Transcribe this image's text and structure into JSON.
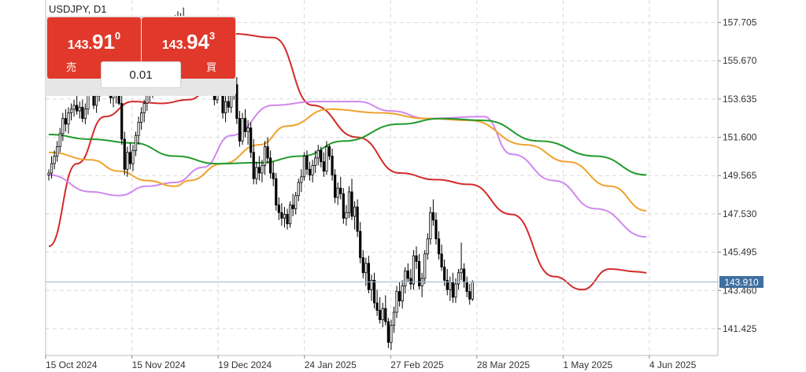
{
  "symbol_title": "USDJPY, D1",
  "trade_panel": {
    "sell": {
      "price_prefix": "143.",
      "price_main": "91",
      "price_sup": "0",
      "label": "売"
    },
    "buy": {
      "price_prefix": "143.",
      "price_main": "94",
      "price_sup": "3",
      "label": "買"
    },
    "lot_size": "0.01"
  },
  "colors": {
    "up_candle": "#ffffff",
    "down_candle": "#000000",
    "candle_outline": "#000000",
    "ma_red": "#d42a2a",
    "ma_violet": "#cf88ee",
    "ma_orange": "#f0a22e",
    "ma_green": "#229a2c",
    "current_price_line": "#9fb4c8",
    "current_price_badge": "#3f6fa0",
    "grid": "#d9d9d9",
    "sell_buy_button": "#e0392b"
  },
  "chart_data": {
    "type": "candlestick",
    "symbol": "USDJPY",
    "timeframe": "D1",
    "ylim": [
      140.0,
      158.9
    ],
    "y_ticks": [
      157.705,
      155.67,
      153.635,
      151.6,
      149.565,
      147.53,
      145.495,
      143.46,
      141.425
    ],
    "y_tick_labels": [
      "157.705",
      "155.670",
      "153.635",
      "151.600",
      "149.565",
      "147.530",
      "145.495",
      "143.460",
      "141.425"
    ],
    "x_tick_labels": [
      "15 Oct 2024",
      "15 Nov 2024",
      "19 Dec 2024",
      "24 Jan 2025",
      "27 Feb 2025",
      "28 Mar 2025",
      "1 May 2025",
      "4 Jun 2025"
    ],
    "current_price": 143.91,
    "current_price_label": "143.910",
    "grid": true,
    "moving_averages": [
      {
        "color": "red",
        "points": [
          [
            0,
            145.8
          ],
          [
            10,
            150.2
          ],
          [
            20,
            152.7
          ],
          [
            30,
            153.5
          ],
          [
            40,
            153.4
          ],
          [
            50,
            153.6
          ],
          [
            60,
            154.7
          ],
          [
            66,
            157.1
          ],
          [
            80,
            156.9
          ],
          [
            94,
            153.3
          ],
          [
            110,
            151.6
          ],
          [
            125,
            149.7
          ],
          [
            138,
            149.35
          ],
          [
            150,
            149.1
          ],
          [
            165,
            147.5
          ],
          [
            180,
            144.2
          ],
          [
            190,
            143.5
          ],
          [
            200,
            144.6
          ],
          [
            210,
            144.45
          ],
          [
            213,
            144.4
          ]
        ]
      },
      {
        "color": "violet",
        "points": [
          [
            0,
            149.6
          ],
          [
            15,
            148.7
          ],
          [
            25,
            148.5
          ],
          [
            35,
            149.0
          ],
          [
            45,
            149.2
          ],
          [
            55,
            150.0
          ],
          [
            65,
            151.7
          ],
          [
            80,
            153.3
          ],
          [
            95,
            153.5
          ],
          [
            110,
            153.5
          ],
          [
            122,
            153.0
          ],
          [
            135,
            152.6
          ],
          [
            155,
            152.7
          ],
          [
            165,
            150.7
          ],
          [
            180,
            149.3
          ],
          [
            195,
            147.8
          ],
          [
            213,
            146.3
          ]
        ]
      },
      {
        "color": "orange",
        "points": [
          [
            0,
            150.8
          ],
          [
            15,
            150.4
          ],
          [
            25,
            149.8
          ],
          [
            35,
            149.3
          ],
          [
            45,
            149.0
          ],
          [
            50,
            149.3
          ],
          [
            62,
            150.2
          ],
          [
            75,
            151.2
          ],
          [
            85,
            152.2
          ],
          [
            100,
            153.1
          ],
          [
            118,
            152.9
          ],
          [
            135,
            152.6
          ],
          [
            150,
            152.5
          ],
          [
            170,
            151.2
          ],
          [
            185,
            150.3
          ],
          [
            200,
            149.0
          ],
          [
            213,
            147.7
          ]
        ]
      },
      {
        "color": "green",
        "points": [
          [
            0,
            151.75
          ],
          [
            15,
            151.5
          ],
          [
            30,
            151.3
          ],
          [
            45,
            150.6
          ],
          [
            60,
            150.2
          ],
          [
            75,
            150.25
          ],
          [
            90,
            150.6
          ],
          [
            105,
            151.4
          ],
          [
            125,
            152.3
          ],
          [
            140,
            152.6
          ],
          [
            155,
            152.5
          ],
          [
            175,
            151.4
          ],
          [
            195,
            150.6
          ],
          [
            213,
            149.6
          ]
        ]
      }
    ],
    "ohlc": [
      [
        149.6,
        149.9,
        149.3,
        149.7
      ],
      [
        149.7,
        150.6,
        149.4,
        150.2
      ],
      [
        150.2,
        150.9,
        149.9,
        150.6
      ],
      [
        150.6,
        151.4,
        150.3,
        151.1
      ],
      [
        151.1,
        152.1,
        150.8,
        151.8
      ],
      [
        151.8,
        152.9,
        151.4,
        152.6
      ],
      [
        152.6,
        153.1,
        151.9,
        152.3
      ],
      [
        152.3,
        153.2,
        151.8,
        152.9
      ],
      [
        152.9,
        153.4,
        152.5,
        153.1
      ],
      [
        153.1,
        153.6,
        152.7,
        153.3
      ],
      [
        153.3,
        153.9,
        152.8,
        153.0
      ],
      [
        153.0,
        153.5,
        152.6,
        153.2
      ],
      [
        153.2,
        153.6,
        152.4,
        152.6
      ],
      [
        152.6,
        153.4,
        152.3,
        153.1
      ],
      [
        153.1,
        154.6,
        152.8,
        154.3
      ],
      [
        154.3,
        154.8,
        153.9,
        154.1
      ],
      [
        154.1,
        154.5,
        153.1,
        153.3
      ],
      [
        153.3,
        154.2,
        152.9,
        153.8
      ],
      [
        153.8,
        155.5,
        153.5,
        155.2
      ],
      [
        155.2,
        155.8,
        154.5,
        155.0
      ],
      [
        155.0,
        155.6,
        154.3,
        155.4
      ],
      [
        155.4,
        156.0,
        154.6,
        154.8
      ],
      [
        154.8,
        155.2,
        153.4,
        153.7
      ],
      [
        153.7,
        154.4,
        153.2,
        153.9
      ],
      [
        153.9,
        154.5,
        153.4,
        154.2
      ],
      [
        154.2,
        154.7,
        153.3,
        153.4
      ],
      [
        153.4,
        153.8,
        151.2,
        151.5
      ],
      [
        151.5,
        151.9,
        149.6,
        149.9
      ],
      [
        149.9,
        151.1,
        149.5,
        150.8
      ],
      [
        150.8,
        151.3,
        149.9,
        150.2
      ],
      [
        150.2,
        151.2,
        149.8,
        150.9
      ],
      [
        150.9,
        151.9,
        150.6,
        151.7
      ],
      [
        151.7,
        152.7,
        151.2,
        152.4
      ],
      [
        152.4,
        153.2,
        152.0,
        152.9
      ],
      [
        152.9,
        153.6,
        152.4,
        153.4
      ],
      [
        153.4,
        154.3,
        153.0,
        154.0
      ],
      [
        154.0,
        154.5,
        153.5,
        153.9
      ],
      [
        153.9,
        154.8,
        153.7,
        154.4
      ],
      [
        154.4,
        155.2,
        154.0,
        154.8
      ],
      [
        154.8,
        156.1,
        154.6,
        155.9
      ],
      [
        155.9,
        157.2,
        155.6,
        156.9
      ],
      [
        156.9,
        157.4,
        156.3,
        156.6
      ],
      [
        156.6,
        157.8,
        156.4,
        157.5
      ],
      [
        157.5,
        157.8,
        156.5,
        156.8
      ],
      [
        156.8,
        157.6,
        156.4,
        157.3
      ],
      [
        157.3,
        158.1,
        157.0,
        157.8
      ],
      [
        157.8,
        158.3,
        157.2,
        157.4
      ],
      [
        157.4,
        158.2,
        157.1,
        158.0
      ],
      [
        158.0,
        158.5,
        157.0,
        157.2
      ],
      [
        157.2,
        157.9,
        156.9,
        157.6
      ],
      [
        157.6,
        157.8,
        156.6,
        156.8
      ],
      [
        156.8,
        157.0,
        154.8,
        155.1
      ],
      [
        155.1,
        156.3,
        154.9,
        156.0
      ],
      [
        156.0,
        156.5,
        155.0,
        155.3
      ],
      [
        155.3,
        156.6,
        155.0,
        156.2
      ],
      [
        156.2,
        156.7,
        155.4,
        155.6
      ],
      [
        155.6,
        156.0,
        154.6,
        154.9
      ],
      [
        154.9,
        155.8,
        154.5,
        155.4
      ],
      [
        155.4,
        155.7,
        154.3,
        154.5
      ],
      [
        154.5,
        155.0,
        153.3,
        153.6
      ],
      [
        153.6,
        154.9,
        153.4,
        154.6
      ],
      [
        154.6,
        155.2,
        153.8,
        154.0
      ],
      [
        154.0,
        154.3,
        152.6,
        152.9
      ],
      [
        152.9,
        153.8,
        152.4,
        153.5
      ],
      [
        153.5,
        154.1,
        152.9,
        153.2
      ],
      [
        153.2,
        154.2,
        152.9,
        153.9
      ],
      [
        153.9,
        154.7,
        153.6,
        154.4
      ],
      [
        154.4,
        154.8,
        152.3,
        152.6
      ],
      [
        152.6,
        153.0,
        151.1,
        151.4
      ],
      [
        151.4,
        152.9,
        151.2,
        152.6
      ],
      [
        152.6,
        153.1,
        151.6,
        151.9
      ],
      [
        151.9,
        152.5,
        151.2,
        152.1
      ],
      [
        152.1,
        152.4,
        150.5,
        150.8
      ],
      [
        150.8,
        151.5,
        149.1,
        149.4
      ],
      [
        149.4,
        150.3,
        149.1,
        150.0
      ],
      [
        150.0,
        150.6,
        149.3,
        149.7
      ],
      [
        149.7,
        150.4,
        149.2,
        150.1
      ],
      [
        150.1,
        151.4,
        149.6,
        151.1
      ],
      [
        151.1,
        151.6,
        150.2,
        150.5
      ],
      [
        150.5,
        150.9,
        149.4,
        149.7
      ],
      [
        149.7,
        150.3,
        149.0,
        149.4
      ],
      [
        149.4,
        149.7,
        147.7,
        148.0
      ],
      [
        148.0,
        148.4,
        147.2,
        147.6
      ],
      [
        147.6,
        148.1,
        146.9,
        147.3
      ],
      [
        147.3,
        147.9,
        146.8,
        147.5
      ],
      [
        147.5,
        147.8,
        146.7,
        147.0
      ],
      [
        147.0,
        148.2,
        146.8,
        148.0
      ],
      [
        148.0,
        148.6,
        147.4,
        147.8
      ],
      [
        147.8,
        148.7,
        147.5,
        148.5
      ],
      [
        148.5,
        149.4,
        148.2,
        149.2
      ],
      [
        149.2,
        149.9,
        148.7,
        149.5
      ],
      [
        149.5,
        150.8,
        149.3,
        150.6
      ],
      [
        150.6,
        150.9,
        149.6,
        149.9
      ],
      [
        149.9,
        150.3,
        149.3,
        149.6
      ],
      [
        149.6,
        150.4,
        149.2,
        150.1
      ],
      [
        150.1,
        150.9,
        149.7,
        150.5
      ],
      [
        150.5,
        151.2,
        150.1,
        150.9
      ],
      [
        150.9,
        151.1,
        150.0,
        150.3
      ],
      [
        150.3,
        150.8,
        149.5,
        149.8
      ],
      [
        149.8,
        151.4,
        149.6,
        151.1
      ],
      [
        151.1,
        151.2,
        150.4,
        150.6
      ],
      [
        150.6,
        151.0,
        149.3,
        149.6
      ],
      [
        149.6,
        149.9,
        148.1,
        148.4
      ],
      [
        148.4,
        149.2,
        148.0,
        148.9
      ],
      [
        148.9,
        149.5,
        148.3,
        148.6
      ],
      [
        148.6,
        148.9,
        147.0,
        147.3
      ],
      [
        147.3,
        148.0,
        146.9,
        147.6
      ],
      [
        147.6,
        149.0,
        147.3,
        148.7
      ],
      [
        148.7,
        149.4,
        147.2,
        147.4
      ],
      [
        147.4,
        148.2,
        146.7,
        147.9
      ],
      [
        147.9,
        148.3,
        146.3,
        146.6
      ],
      [
        146.6,
        147.1,
        144.9,
        145.2
      ],
      [
        145.2,
        145.6,
        144.1,
        144.4
      ],
      [
        144.4,
        145.2,
        143.7,
        144.9
      ],
      [
        144.9,
        145.3,
        143.3,
        143.5
      ],
      [
        143.5,
        144.3,
        142.9,
        144.0
      ],
      [
        144.0,
        144.4,
        142.5,
        142.8
      ],
      [
        142.8,
        143.5,
        142.1,
        142.4
      ],
      [
        142.4,
        143.1,
        141.7,
        141.9
      ],
      [
        141.9,
        142.8,
        141.5,
        142.5
      ],
      [
        142.5,
        143.2,
        141.6,
        141.8
      ],
      [
        141.8,
        142.0,
        140.4,
        140.7
      ],
      [
        140.7,
        141.9,
        140.3,
        141.6
      ],
      [
        141.6,
        142.6,
        141.2,
        142.3
      ],
      [
        142.3,
        143.7,
        142.0,
        143.4
      ],
      [
        143.4,
        143.9,
        142.6,
        142.9
      ],
      [
        142.9,
        144.0,
        142.5,
        143.7
      ],
      [
        143.7,
        144.7,
        143.3,
        144.5
      ],
      [
        144.5,
        144.9,
        143.9,
        144.1
      ],
      [
        144.1,
        144.6,
        143.5,
        143.8
      ],
      [
        143.8,
        145.6,
        143.5,
        145.3
      ],
      [
        145.3,
        145.8,
        144.6,
        145.0
      ],
      [
        145.0,
        145.4,
        143.5,
        143.7
      ],
      [
        143.7,
        144.4,
        143.1,
        144.1
      ],
      [
        144.1,
        145.6,
        143.8,
        145.4
      ],
      [
        145.4,
        146.5,
        145.1,
        146.2
      ],
      [
        146.2,
        147.9,
        145.9,
        147.6
      ],
      [
        147.6,
        148.3,
        146.9,
        147.2
      ],
      [
        147.2,
        147.6,
        145.9,
        146.2
      ],
      [
        146.2,
        146.6,
        145.1,
        145.4
      ],
      [
        145.4,
        145.9,
        144.5,
        144.7
      ],
      [
        144.7,
        145.1,
        143.7,
        144.0
      ],
      [
        144.0,
        144.6,
        143.2,
        143.5
      ],
      [
        143.5,
        144.2,
        142.9,
        143.9
      ],
      [
        143.9,
        144.4,
        142.8,
        143.1
      ],
      [
        143.1,
        144.1,
        142.8,
        143.8
      ],
      [
        143.8,
        144.6,
        143.5,
        144.4
      ],
      [
        144.4,
        146.0,
        144.0,
        144.6
      ],
      [
        144.6,
        144.9,
        143.6,
        143.9
      ],
      [
        143.9,
        144.2,
        143.1,
        143.4
      ],
      [
        143.4,
        143.8,
        142.7,
        143.0
      ],
      [
        143.0,
        144.0,
        142.9,
        143.9
      ]
    ]
  }
}
